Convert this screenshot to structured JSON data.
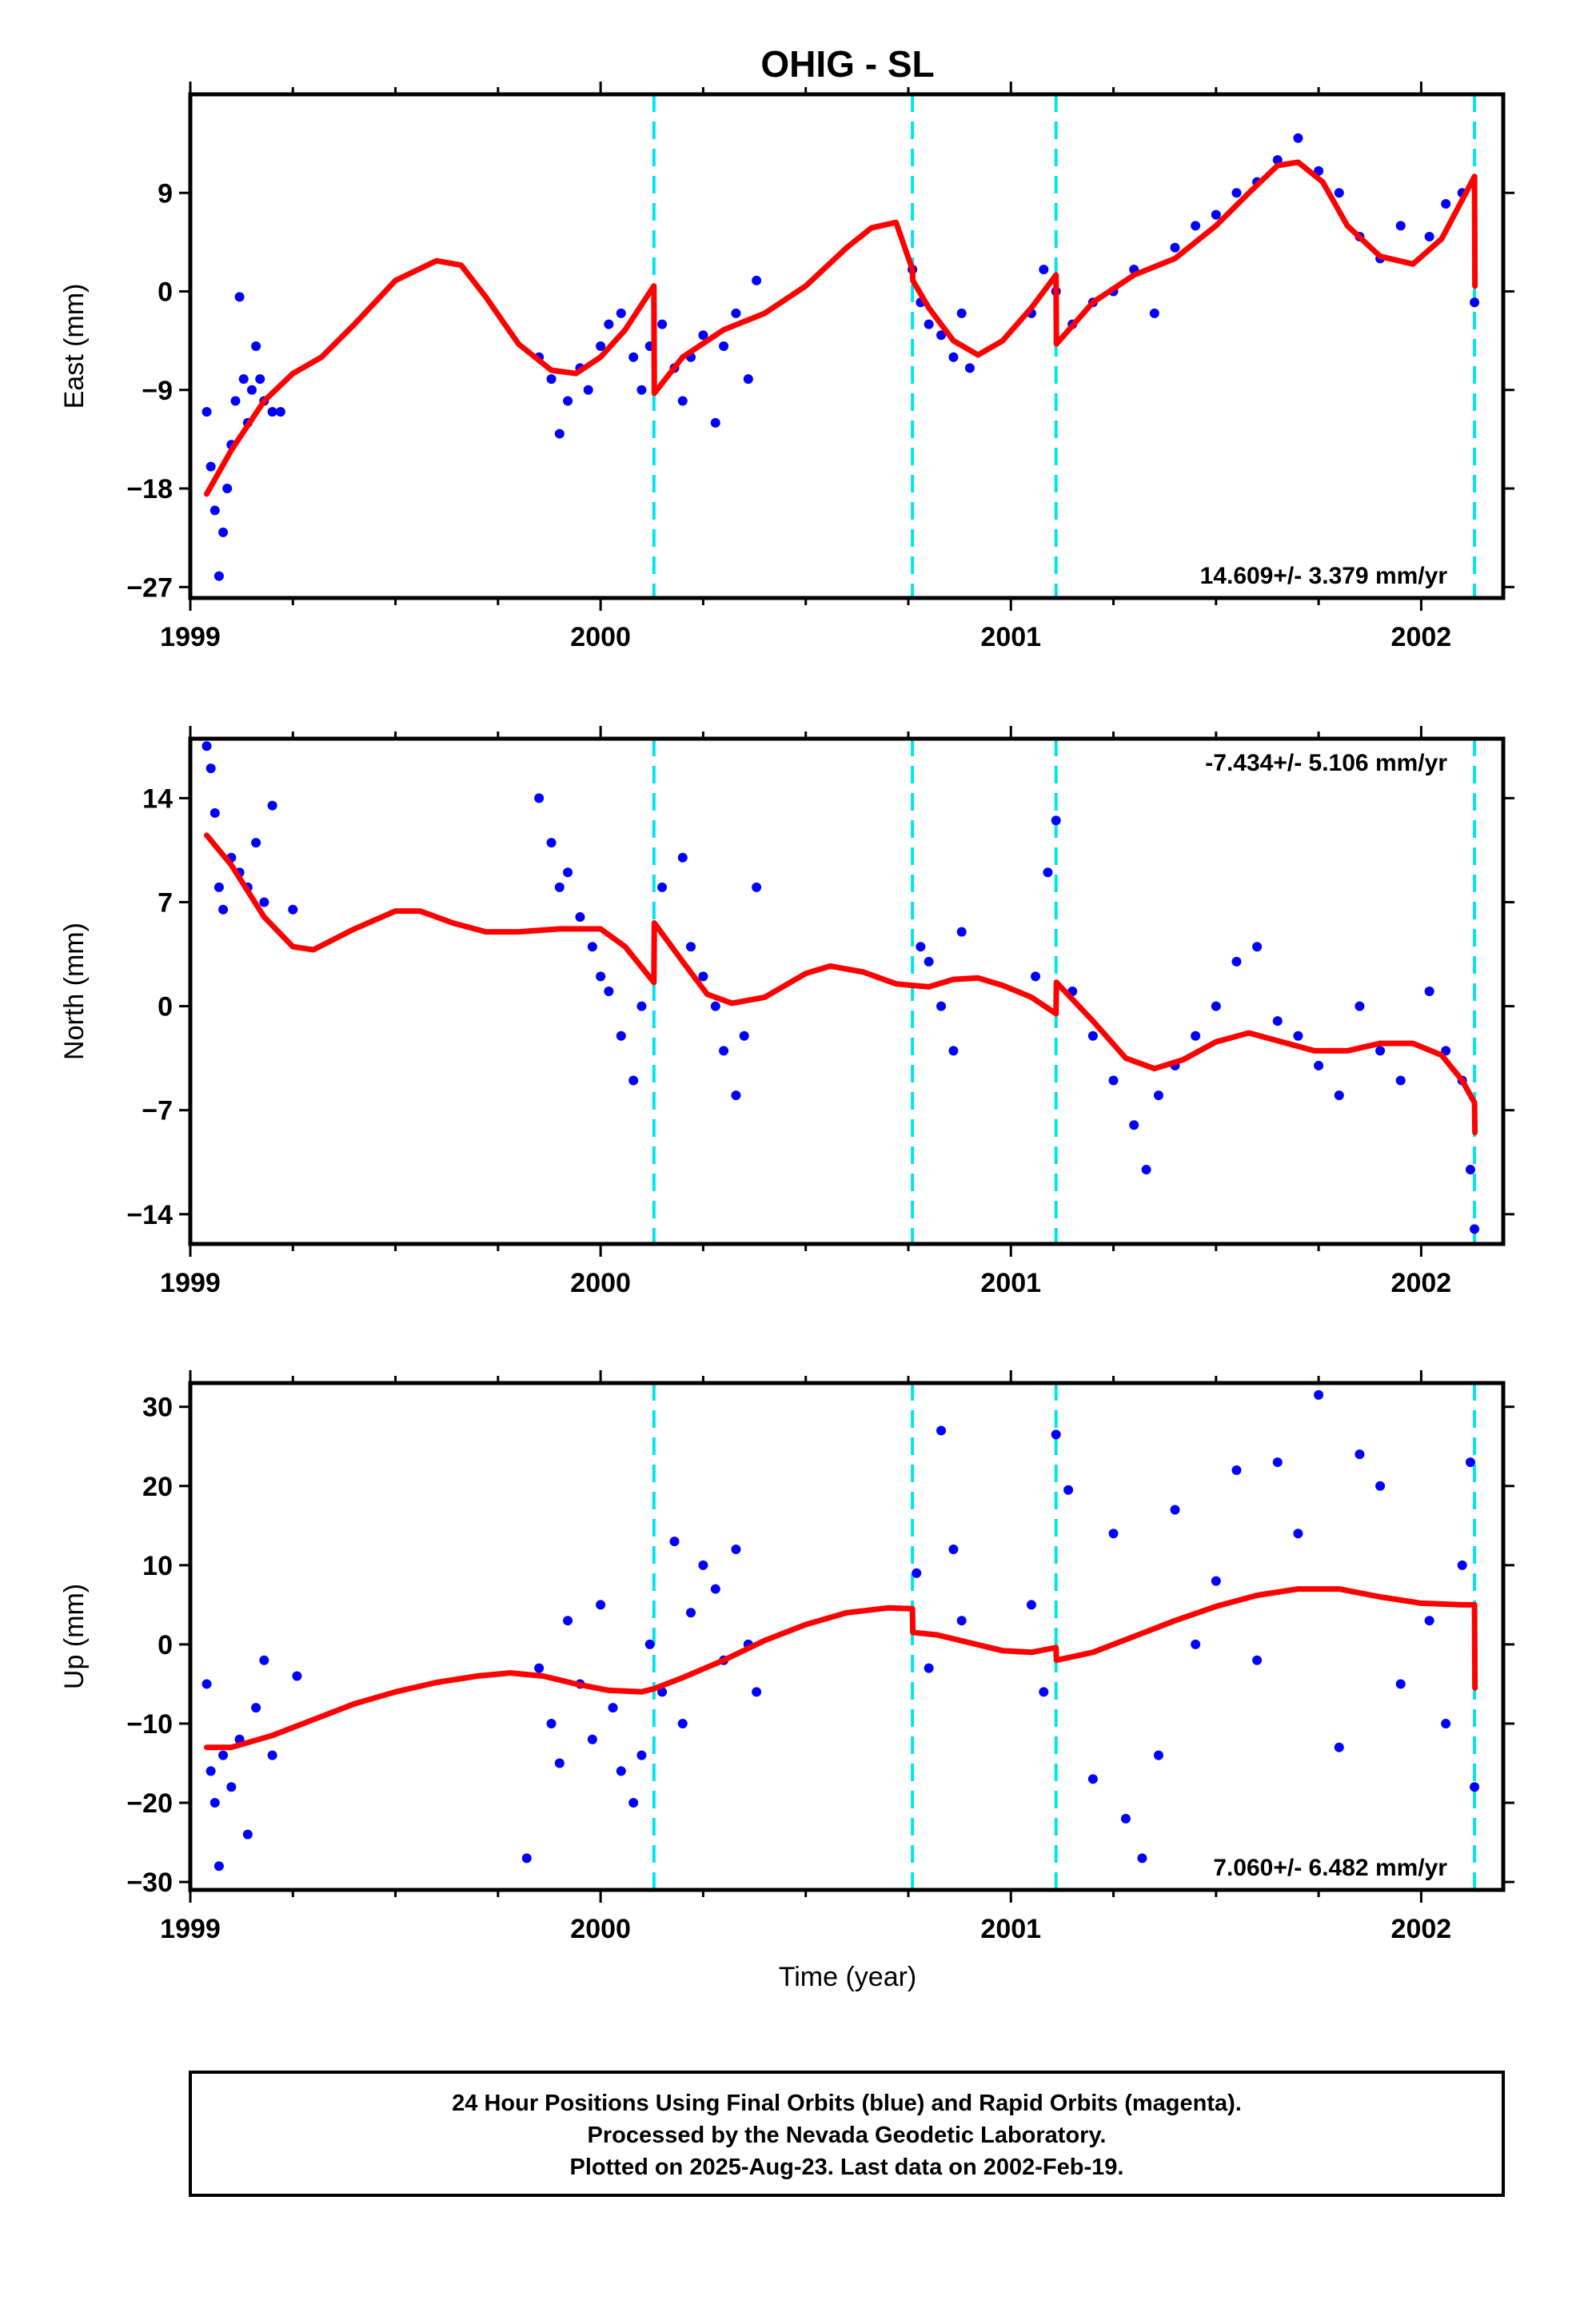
{
  "title": "OHIG - SL",
  "caption": [
    "24 Hour Positions Using Final Orbits (blue) and Rapid Orbits (magenta).",
    "Processed by the Nevada Geodetic Laboratory.",
    "Plotted on 2025-Aug-23. Last data on 2002-Feb-19."
  ],
  "xlabel": "Time (year)",
  "colors": {
    "points": "#0000ff",
    "model": "#ff0000",
    "breaks": "#00e5ee",
    "frame": "#000000"
  },
  "chart_data": [
    {
      "type": "scatter",
      "ylabel": "East (mm)",
      "rate": "14.609+/- 3.379 mm/yr",
      "xlim": [
        1999.0,
        2002.2
      ],
      "ylim": [
        -28,
        18
      ],
      "yticks": [
        -27,
        -18,
        -9,
        0,
        9
      ],
      "xticks": [
        1999,
        2000,
        2001,
        2002
      ],
      "xtick_labels": [
        "1999",
        "2000",
        "2001",
        "2002"
      ],
      "breaks": [
        2000.13,
        2000.76,
        2001.11,
        2002.13
      ],
      "series": [
        {
          "kind": "model",
          "x": [
            1999.04,
            1999.1,
            1999.18,
            1999.25,
            1999.32,
            1999.4,
            1999.5,
            1999.6,
            1999.66,
            1999.72,
            1999.8,
            1999.88,
            1999.94,
            2000.0,
            2000.06,
            2000.13,
            2000.131,
            2000.2,
            2000.3,
            2000.4,
            2000.5,
            2000.6,
            2000.66,
            2000.72,
            2000.76,
            2000.761,
            2000.8,
            2000.86,
            2000.92,
            2000.98,
            2001.05,
            2001.11,
            2001.111,
            2001.2,
            2001.3,
            2001.4,
            2001.5,
            2001.58,
            2001.65,
            2001.7,
            2001.76,
            2001.82,
            2001.9,
            2001.98,
            2002.05,
            2002.13,
            2002.131
          ],
          "y": [
            -18.5,
            -14.5,
            -10,
            -7.5,
            -6,
            -3,
            1,
            2.8,
            2.4,
            -0.5,
            -4.8,
            -7.2,
            -7.5,
            -6,
            -3.5,
            0.5,
            -9.3,
            -6,
            -3.5,
            -2,
            0.5,
            4,
            5.8,
            6.3,
            2,
            1,
            -1.5,
            -4.5,
            -5.8,
            -4.5,
            -1.5,
            1.5,
            -4.8,
            -1,
            1.5,
            3,
            6,
            9,
            11.5,
            11.8,
            10,
            6,
            3.2,
            2.5,
            4.8,
            10.5,
            0.5
          ]
        },
        {
          "kind": "observed",
          "x": [
            1999.04,
            1999.05,
            1999.06,
            1999.07,
            1999.08,
            1999.09,
            1999.1,
            1999.11,
            1999.12,
            1999.13,
            1999.14,
            1999.15,
            1999.16,
            1999.17,
            1999.18,
            1999.2,
            1999.22,
            1999.85,
            1999.88,
            1999.9,
            1999.92,
            1999.95,
            1999.97,
            2000.0,
            2000.02,
            2000.05,
            2000.08,
            2000.1,
            2000.12,
            2000.15,
            2000.18,
            2000.2,
            2000.22,
            2000.25,
            2000.28,
            2000.3,
            2000.33,
            2000.36,
            2000.38,
            2000.76,
            2000.78,
            2000.8,
            2000.83,
            2000.86,
            2000.88,
            2000.9,
            2001.05,
            2001.08,
            2001.11,
            2001.15,
            2001.2,
            2001.25,
            2001.3,
            2001.35,
            2001.4,
            2001.45,
            2001.5,
            2001.55,
            2001.6,
            2001.65,
            2001.7,
            2001.75,
            2001.8,
            2001.85,
            2001.9,
            2001.95,
            2002.02,
            2002.06,
            2002.1,
            2002.13
          ],
          "y": [
            -11,
            -16,
            -20,
            -26,
            -22,
            -18,
            -14,
            -10,
            -0.5,
            -8,
            -12,
            -9,
            -5,
            -8,
            -10,
            -11,
            -11,
            -6,
            -8,
            -13,
            -10,
            -7,
            -9,
            -5,
            -3,
            -2,
            -6,
            -9,
            -5,
            -3,
            -7,
            -10,
            -6,
            -4,
            -12,
            -5,
            -2,
            -8,
            1,
            2,
            -1,
            -3,
            -4,
            -6,
            -2,
            -7,
            -2,
            2,
            0,
            -3,
            -1,
            0,
            2,
            -2,
            4,
            6,
            7,
            9,
            10,
            12,
            14,
            11,
            9,
            5,
            3,
            6,
            5,
            8,
            9,
            -1
          ]
        }
      ]
    },
    {
      "type": "scatter",
      "ylabel": "North (mm)",
      "rate": "-7.434+/- 5.106 mm/yr",
      "xlim": [
        1999.0,
        2002.2
      ],
      "ylim": [
        -16,
        18
      ],
      "yticks": [
        -14,
        -7,
        0,
        7,
        14
      ],
      "xticks": [
        1999,
        2000,
        2001,
        2002
      ],
      "xtick_labels": [
        "1999",
        "2000",
        "2001",
        "2002"
      ],
      "breaks": [
        2000.13,
        2000.76,
        2001.11,
        2002.13
      ],
      "series": [
        {
          "kind": "model",
          "x": [
            1999.04,
            1999.1,
            1999.18,
            1999.25,
            1999.3,
            1999.4,
            1999.5,
            1999.56,
            1999.64,
            1999.72,
            1999.8,
            1999.9,
            2000.0,
            2000.06,
            2000.13,
            2000.131,
            2000.2,
            2000.26,
            2000.32,
            2000.4,
            2000.5,
            2000.56,
            2000.64,
            2000.72,
            2000.76,
            2000.8,
            2000.86,
            2000.92,
            2000.98,
            2001.05,
            2001.11,
            2001.111,
            2001.2,
            2001.28,
            2001.35,
            2001.42,
            2001.5,
            2001.58,
            2001.66,
            2001.74,
            2001.82,
            2001.9,
            2001.98,
            2002.05,
            2002.1,
            2002.13,
            2002.131
          ],
          "y": [
            11.5,
            9.5,
            6,
            4,
            3.8,
            5.2,
            6.4,
            6.4,
            5.6,
            5,
            5,
            5.2,
            5.2,
            4,
            1.6,
            5.6,
            3,
            0.8,
            0.2,
            0.6,
            2.2,
            2.7,
            2.3,
            1.5,
            1.4,
            1.3,
            1.8,
            1.9,
            1.4,
            0.6,
            -0.5,
            1.6,
            -1,
            -3.5,
            -4.2,
            -3.6,
            -2.4,
            -1.8,
            -2.4,
            -3,
            -3,
            -2.5,
            -2.5,
            -3.3,
            -5,
            -6.5,
            -8.5
          ]
        },
        {
          "kind": "observed",
          "x": [
            1999.04,
            1999.05,
            1999.06,
            1999.07,
            1999.08,
            1999.1,
            1999.12,
            1999.14,
            1999.16,
            1999.18,
            1999.2,
            1999.25,
            1999.85,
            1999.88,
            1999.9,
            1999.92,
            1999.95,
            1999.98,
            2000.0,
            2000.02,
            2000.05,
            2000.08,
            2000.1,
            2000.15,
            2000.2,
            2000.22,
            2000.25,
            2000.28,
            2000.3,
            2000.33,
            2000.35,
            2000.38,
            2000.78,
            2000.8,
            2000.83,
            2000.86,
            2000.88,
            2001.06,
            2001.09,
            2001.11,
            2001.15,
            2001.2,
            2001.25,
            2001.3,
            2001.33,
            2001.36,
            2001.4,
            2001.45,
            2001.5,
            2001.55,
            2001.6,
            2001.65,
            2001.7,
            2001.75,
            2001.8,
            2001.85,
            2001.9,
            2001.95,
            2002.02,
            2002.06,
            2002.1,
            2002.12,
            2002.13
          ],
          "y": [
            17.5,
            16,
            13,
            8,
            6.5,
            10,
            9,
            8,
            11,
            7,
            13.5,
            6.5,
            14,
            11,
            8,
            9,
            6,
            4,
            2,
            1,
            -2,
            -5,
            0,
            8,
            10,
            4,
            2,
            0,
            -3,
            -6,
            -2,
            8,
            4,
            3,
            0,
            -3,
            5,
            2,
            9,
            12.5,
            1,
            -2,
            -5,
            -8,
            -11,
            -6,
            -4,
            -2,
            0,
            3,
            4,
            -1,
            -2,
            -4,
            -6,
            0,
            -3,
            -5,
            1,
            -3,
            -5,
            -11,
            -15
          ]
        }
      ]
    },
    {
      "type": "scatter",
      "ylabel": "Up (mm)",
      "rate": "7.060+/- 6.482 mm/yr",
      "xlim": [
        1999.0,
        2002.2
      ],
      "ylim": [
        -31,
        33
      ],
      "yticks": [
        -30,
        -20,
        -10,
        0,
        10,
        20,
        30
      ],
      "xticks": [
        1999,
        2000,
        2001,
        2002
      ],
      "xtick_labels": [
        "1999",
        "2000",
        "2001",
        "2002"
      ],
      "breaks": [
        2000.13,
        2000.76,
        2001.11,
        2002.13
      ],
      "series": [
        {
          "kind": "model",
          "x": [
            1999.04,
            1999.1,
            1999.2,
            1999.3,
            1999.4,
            1999.5,
            1999.6,
            1999.7,
            1999.78,
            1999.86,
            1999.94,
            2000.02,
            2000.1,
            2000.13,
            2000.2,
            2000.3,
            2000.4,
            2000.5,
            2000.6,
            2000.7,
            2000.76,
            2000.761,
            2000.82,
            2000.9,
            2000.98,
            2001.05,
            2001.11,
            2001.111,
            2001.2,
            2001.3,
            2001.4,
            2001.5,
            2001.6,
            2001.7,
            2001.8,
            2001.9,
            2002.0,
            2002.1,
            2002.13,
            2002.131
          ],
          "y": [
            -13,
            -13,
            -11.5,
            -9.5,
            -7.5,
            -6,
            -4.8,
            -4,
            -3.6,
            -4,
            -5,
            -5.8,
            -6,
            -5.6,
            -4.2,
            -2,
            0.5,
            2.5,
            4,
            4.6,
            4.5,
            1.5,
            1.2,
            0.2,
            -0.8,
            -1,
            -0.4,
            -2,
            -1,
            1,
            3,
            4.8,
            6.2,
            7,
            7,
            6,
            5.2,
            5,
            5,
            -5.5
          ]
        },
        {
          "kind": "observed",
          "x": [
            1999.04,
            1999.05,
            1999.06,
            1999.07,
            1999.08,
            1999.1,
            1999.12,
            1999.14,
            1999.16,
            1999.18,
            1999.2,
            1999.26,
            1999.82,
            1999.85,
            1999.88,
            1999.9,
            1999.92,
            1999.95,
            1999.98,
            2000.0,
            2000.03,
            2000.05,
            2000.08,
            2000.1,
            2000.12,
            2000.15,
            2000.18,
            2000.2,
            2000.22,
            2000.25,
            2000.28,
            2000.3,
            2000.33,
            2000.36,
            2000.38,
            2000.77,
            2000.8,
            2000.83,
            2000.86,
            2000.88,
            2001.05,
            2001.08,
            2001.11,
            2001.14,
            2001.2,
            2001.25,
            2001.28,
            2001.32,
            2001.36,
            2001.4,
            2001.45,
            2001.5,
            2001.55,
            2001.6,
            2001.65,
            2001.7,
            2001.75,
            2001.8,
            2001.85,
            2001.9,
            2001.95,
            2002.02,
            2002.06,
            2002.1,
            2002.12,
            2002.13
          ],
          "y": [
            -5,
            -16,
            -20,
            -28,
            -14,
            -18,
            -12,
            -24,
            -8,
            -2,
            -14,
            -4,
            -27,
            -3,
            -10,
            -15,
            3,
            -5,
            -12,
            5,
            -8,
            -16,
            -20,
            -14,
            0,
            -6,
            13,
            -10,
            4,
            10,
            7,
            -2,
            12,
            0,
            -6,
            9,
            -3,
            27,
            12,
            3,
            5,
            -6,
            26.5,
            19.5,
            -17,
            14,
            -22,
            -27,
            -14,
            17,
            0,
            8,
            22,
            -2,
            23,
            14,
            31.5,
            -13,
            24,
            20,
            -5,
            3,
            -10,
            10,
            23,
            -18
          ]
        }
      ]
    }
  ]
}
